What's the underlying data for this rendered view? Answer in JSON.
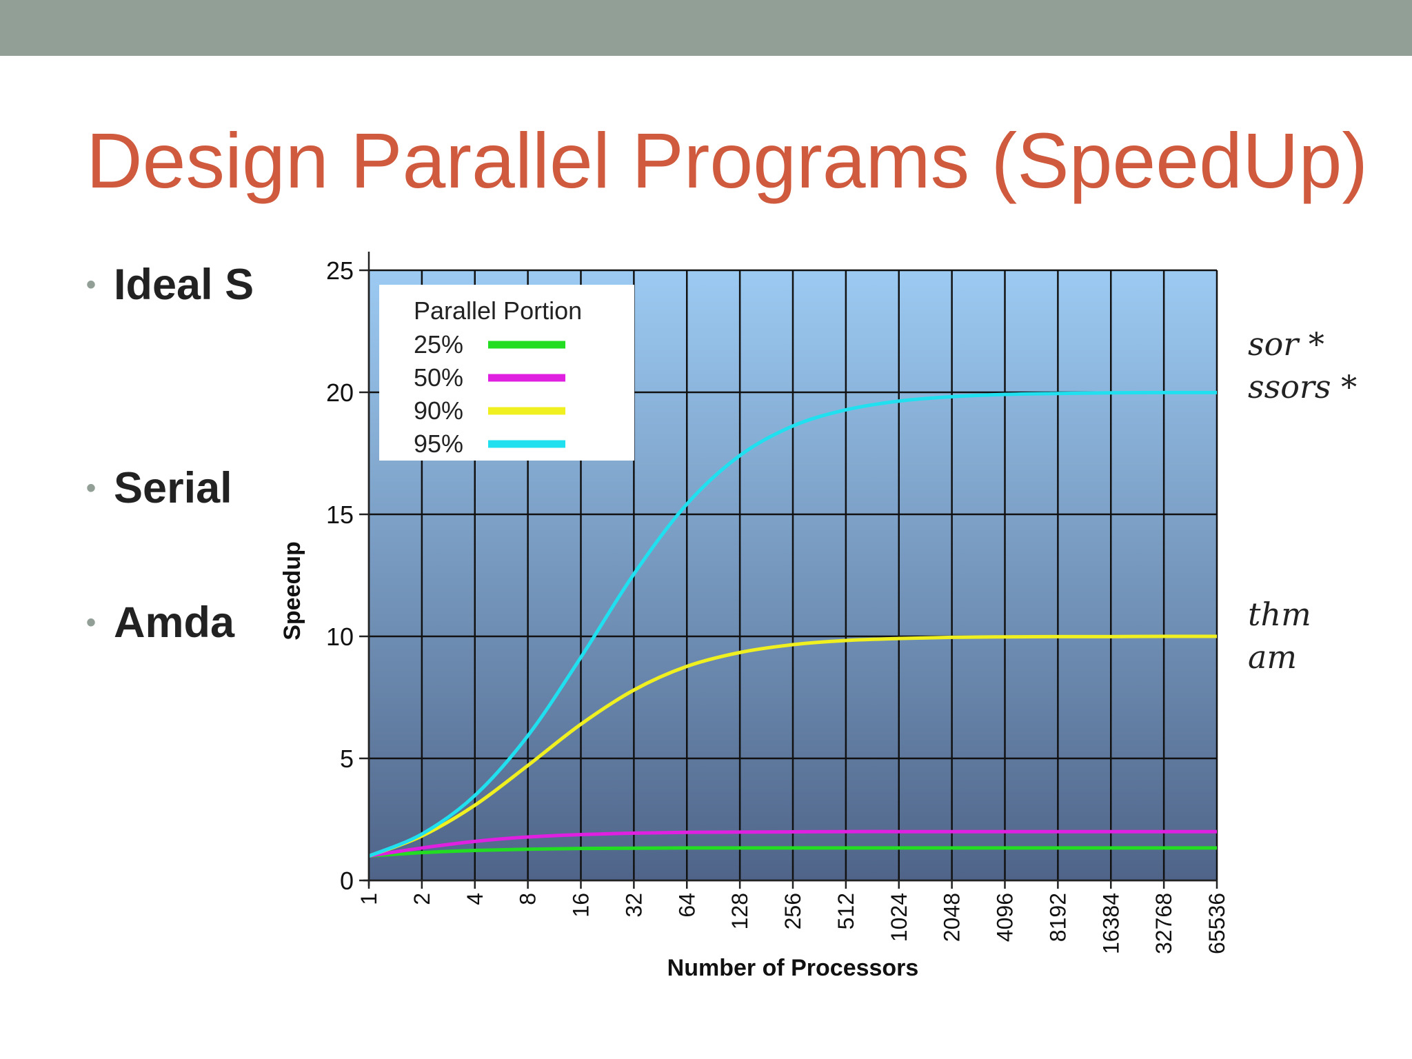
{
  "slide": {
    "title": "Design Parallel Programs (SpeedUp)",
    "bullets": [
      {
        "text": "Ideal S"
      },
      {
        "text": "Serial"
      },
      {
        "text": "Amda"
      }
    ],
    "math_fragments": [
      "sor *",
      "ssors *",
      "thm",
      "am"
    ]
  },
  "colors": {
    "top_band": "#919f96",
    "title": "#cf5a3e",
    "plot_gradient_top": "#9ccaf2",
    "plot_gradient_bottom": "#4f6488"
  },
  "chart_data": {
    "type": "line",
    "xlabel": "Number of Processors",
    "ylabel": "Speedup",
    "ylim": [
      0,
      25
    ],
    "yticks": [
      "0",
      "5",
      "10",
      "15",
      "20",
      "25"
    ],
    "x_scale": "log2",
    "categories": [
      "1",
      "2",
      "4",
      "8",
      "16",
      "32",
      "64",
      "128",
      "256",
      "512",
      "1024",
      "2048",
      "4096",
      "8192",
      "16384",
      "32768",
      "65536"
    ],
    "legend": {
      "title": "Parallel Portion",
      "position": "top-left"
    },
    "grid": true,
    "series": [
      {
        "name": "25%",
        "color": "#22dd22",
        "values": [
          1.0,
          1.14,
          1.23,
          1.28,
          1.31,
          1.32,
          1.33,
          1.33,
          1.33,
          1.33,
          1.33,
          1.33,
          1.33,
          1.33,
          1.33,
          1.33,
          1.33
        ]
      },
      {
        "name": "50%",
        "color": "#e020e0",
        "values": [
          1.0,
          1.33,
          1.6,
          1.78,
          1.88,
          1.94,
          1.97,
          1.98,
          1.99,
          2.0,
          2.0,
          2.0,
          2.0,
          2.0,
          2.0,
          2.0,
          2.0
        ]
      },
      {
        "name": "90%",
        "color": "#f0f020",
        "values": [
          1.0,
          1.82,
          3.08,
          4.71,
          6.4,
          7.8,
          8.77,
          9.34,
          9.66,
          9.83,
          9.91,
          9.96,
          9.98,
          9.99,
          9.99,
          10.0,
          10.0
        ]
      },
      {
        "name": "95%",
        "color": "#20e0f0",
        "values": [
          1.0,
          1.9,
          3.48,
          5.93,
          9.14,
          12.55,
          15.42,
          17.41,
          18.62,
          19.28,
          19.64,
          19.82,
          19.91,
          19.95,
          19.98,
          19.99,
          19.99
        ]
      }
    ]
  }
}
